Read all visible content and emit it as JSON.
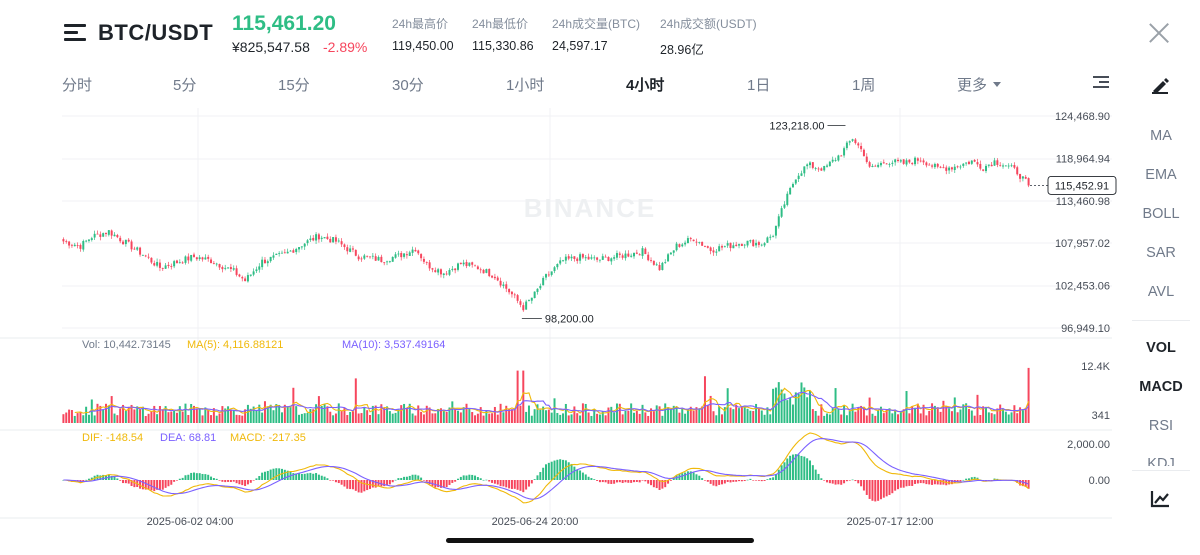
{
  "header": {
    "pair": "BTC/USDT",
    "price": "115,461.20",
    "cny_price": "¥825,547.58",
    "change": "-2.89%",
    "stats": [
      {
        "label": "24h最高价",
        "value": "119,450.00"
      },
      {
        "label": "24h最低价",
        "value": "115,330.86"
      },
      {
        "label": "24h成交量(BTC)",
        "value": "24,597.17"
      },
      {
        "label": "24h成交额(USDT)",
        "value": "28.96亿"
      }
    ]
  },
  "tabs": [
    "分时",
    "5分",
    "15分",
    "30分",
    "1小时",
    "4小时",
    "1日",
    "1周",
    "更多"
  ],
  "active_tab": "4小时",
  "side_main": [
    "MA",
    "EMA",
    "BOLL",
    "SAR",
    "AVL"
  ],
  "side_sub": [
    "VOL",
    "MACD",
    "RSI"
  ],
  "side_sub_partial": "KDJ",
  "colors": {
    "up": "#2ebd85",
    "down": "#f6465d",
    "ma5": "#f0b90b",
    "ma10": "#7b61ff",
    "grid": "#f1f2f4",
    "text_gray": "#707a8a"
  },
  "chart_data": {
    "type": "candlestick",
    "watermark": "BINANCE",
    "price_axis_labels": [
      "124,468.90",
      "118,964.94",
      "113,460.98",
      "107,957.02",
      "102,453.06",
      "96,949.10"
    ],
    "price_axis_values": [
      124468.9,
      118964.94,
      113460.98,
      107957.02,
      102453.06,
      96949.1
    ],
    "high_marker": {
      "label": "123,218.00",
      "value": 123218.0
    },
    "low_marker": {
      "label": "98,200.00",
      "value": 98200.0
    },
    "last_price_label": "115,452.91",
    "last_price": 115452.91,
    "x_labels": [
      "2025-06-02 04:00",
      "2025-06-24 20:00",
      "2025-07-17 12:00"
    ],
    "close_anchors": [
      [
        0,
        108200
      ],
      [
        6,
        107600
      ],
      [
        10,
        108800
      ],
      [
        16,
        109500
      ],
      [
        22,
        108000
      ],
      [
        28,
        106500
      ],
      [
        34,
        104800
      ],
      [
        40,
        105500
      ],
      [
        46,
        106200
      ],
      [
        52,
        105700
      ],
      [
        60,
        104300
      ],
      [
        64,
        103100
      ],
      [
        70,
        105600
      ],
      [
        78,
        106500
      ],
      [
        84,
        107800
      ],
      [
        90,
        108900
      ],
      [
        96,
        108200
      ],
      [
        104,
        106300
      ],
      [
        112,
        105800
      ],
      [
        118,
        106300
      ],
      [
        124,
        107300
      ],
      [
        128,
        105200
      ],
      [
        134,
        104100
      ],
      [
        140,
        105300
      ],
      [
        146,
        104800
      ],
      [
        152,
        103700
      ],
      [
        158,
        101300
      ],
      [
        162,
        99600
      ],
      [
        166,
        101300
      ],
      [
        170,
        103600
      ],
      [
        176,
        105700
      ],
      [
        182,
        106100
      ],
      [
        188,
        105800
      ],
      [
        196,
        106300
      ],
      [
        204,
        106900
      ],
      [
        210,
        104700
      ],
      [
        216,
        107600
      ],
      [
        222,
        108600
      ],
      [
        228,
        107100
      ],
      [
        234,
        107600
      ],
      [
        240,
        108100
      ],
      [
        246,
        107900
      ],
      [
        250,
        109100
      ],
      [
        254,
        113100
      ],
      [
        258,
        116600
      ],
      [
        262,
        118100
      ],
      [
        268,
        117600
      ],
      [
        274,
        119600
      ],
      [
        278,
        121600
      ],
      [
        282,
        119600
      ],
      [
        284,
        117600
      ],
      [
        290,
        118600
      ],
      [
        296,
        118300
      ],
      [
        302,
        118900
      ],
      [
        308,
        117600
      ],
      [
        314,
        117900
      ],
      [
        320,
        118600
      ],
      [
        324,
        117800
      ],
      [
        328,
        118600
      ],
      [
        332,
        118100
      ],
      [
        336,
        117200
      ],
      [
        340,
        115453
      ]
    ],
    "volume": {
      "label": "Vol: 10,442.73145",
      "ma5_label": "MA(5): 4,116.88121",
      "ma10_label": "MA(10): 3,537.49164",
      "axis_max": "12.4K",
      "axis_min": "341"
    },
    "macd": {
      "dif_label": "DIF: -148.54",
      "dea_label": "DEA: 68.81",
      "macd_label": "MACD: -217.35",
      "axis_max": "2,000.00",
      "axis_zero": "0.00"
    }
  }
}
